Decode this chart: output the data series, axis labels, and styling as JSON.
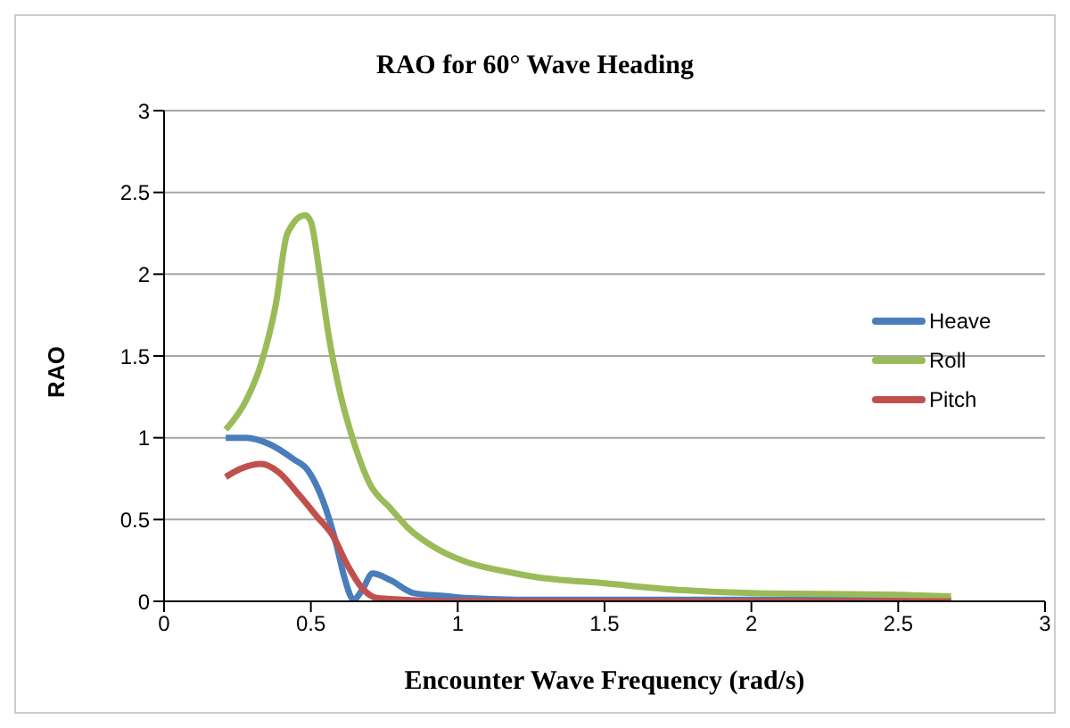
{
  "chart_data": {
    "type": "line",
    "title": "RAO for 60° Wave Heading",
    "xlabel": "Encounter Wave Frequency (rad/s)",
    "ylabel": "RAO",
    "xlim": [
      0,
      3
    ],
    "xticks": [
      0,
      0.5,
      1,
      1.5,
      2,
      2.5,
      3
    ],
    "ylim": [
      0,
      3
    ],
    "yticks": [
      0,
      0.5,
      1,
      1.5,
      2,
      2.5,
      3
    ],
    "grid": "y",
    "legend": "right",
    "marker": "none",
    "line_style": "solid",
    "series": [
      {
        "name": "Heave",
        "color": "#4a7ebb",
        "x": [
          0.21,
          0.28,
          0.36,
          0.44,
          0.49,
          0.54,
          0.585,
          0.615,
          0.645,
          0.675,
          0.71,
          0.77,
          0.85,
          0.97,
          1.03,
          1.2,
          1.5,
          2,
          2.5,
          2.68
        ],
        "values": [
          1.0,
          1.0,
          0.96,
          0.87,
          0.8,
          0.62,
          0.36,
          0.14,
          0.01,
          0.07,
          0.17,
          0.13,
          0.05,
          0.03,
          0.02,
          0.01,
          0.01,
          0.01,
          0.01,
          0.01
        ]
      },
      {
        "name": "Roll",
        "color": "#9bbb59",
        "x": [
          0.21,
          0.28,
          0.33,
          0.38,
          0.42,
          0.48,
          0.5,
          0.53,
          0.56,
          0.6,
          0.645,
          0.7,
          0.77,
          0.83,
          0.93,
          1.03,
          1.17,
          1.26,
          1.5,
          1.75,
          2,
          2.5,
          2.68
        ],
        "values": [
          1.05,
          1.23,
          1.45,
          1.81,
          2.25,
          2.36,
          2.32,
          2.0,
          1.63,
          1.27,
          0.98,
          0.72,
          0.57,
          0.45,
          0.32,
          0.24,
          0.18,
          0.15,
          0.11,
          0.07,
          0.05,
          0.04,
          0.03
        ]
      },
      {
        "name": "Pitch",
        "color": "#c0504d",
        "x": [
          0.21,
          0.26,
          0.33,
          0.39,
          0.46,
          0.52,
          0.575,
          0.625,
          0.675,
          0.725,
          0.81,
          1,
          1.5,
          2,
          2.5,
          2.68
        ],
        "values": [
          0.76,
          0.81,
          0.84,
          0.79,
          0.65,
          0.52,
          0.4,
          0.22,
          0.08,
          0.02,
          0.01,
          0,
          0,
          0,
          0,
          0
        ]
      }
    ]
  }
}
